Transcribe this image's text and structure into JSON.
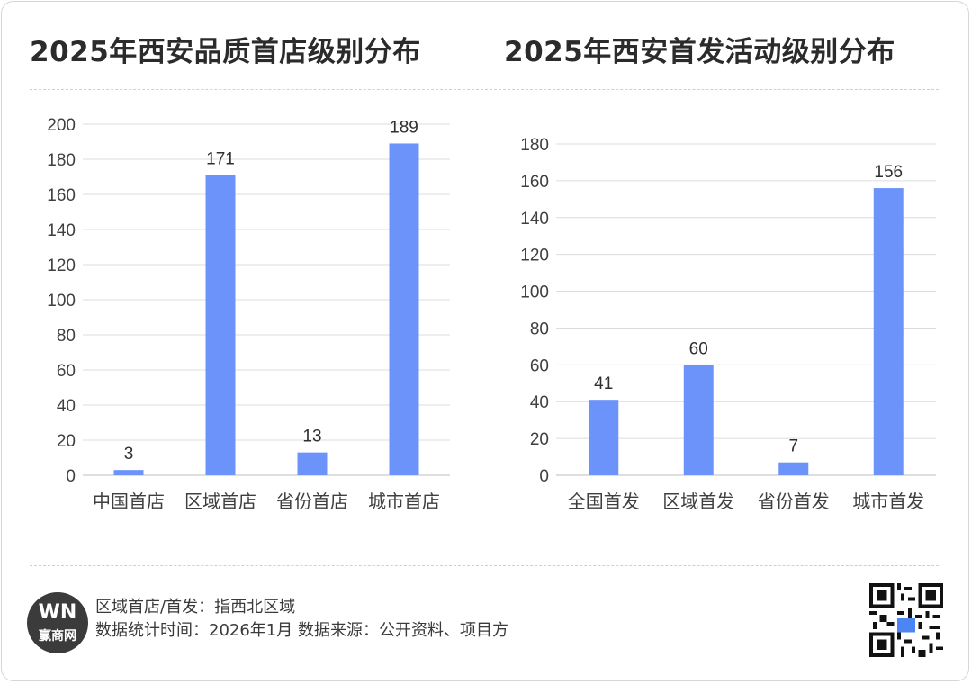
{
  "left": {
    "title": "2025年西安品质首店级别分布",
    "chart_data": {
      "type": "bar",
      "categories": [
        "中国首店",
        "区域首店",
        "省份首店",
        "城市首店"
      ],
      "values": [
        3,
        171,
        13,
        189
      ],
      "yticks": [
        0,
        20,
        40,
        60,
        80,
        100,
        120,
        140,
        160,
        180,
        200
      ],
      "ylim": [
        0,
        200
      ],
      "grid": true,
      "color": "#6b93fa"
    }
  },
  "right": {
    "title": "2025年西安首发活动级别分布",
    "chart_data": {
      "type": "bar",
      "categories": [
        "全国首发",
        "区域首发",
        "省份首发",
        "城市首发"
      ],
      "values": [
        41,
        60,
        7,
        156
      ],
      "yticks": [
        0,
        20,
        40,
        60,
        80,
        100,
        120,
        140,
        160,
        180
      ],
      "ylim": [
        0,
        180
      ],
      "grid": true,
      "color": "#6b93fa"
    }
  },
  "footer": {
    "logo_text": "W​N",
    "logo_name": "赢商网",
    "note1": "区域首店/首发：指西北区域",
    "note2": "数据统计时间：2026年1月 数据来源：公开资料、项目方",
    "qr_icon": "qr-code-icon"
  }
}
